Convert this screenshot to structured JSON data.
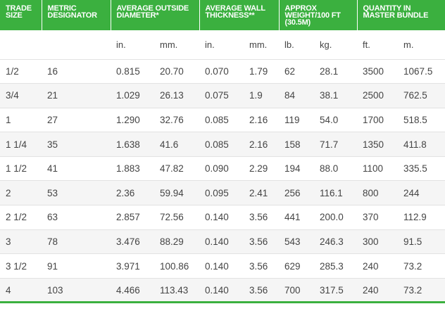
{
  "headers": [
    "TRADE SIZE",
    "METRIC DESIGNATOR",
    "AVERAGE OUTSIDE DIAMETER*",
    "AVERAGE WALL THICKNESS**",
    "APPROX WEIGHT/100 FT (30.5M)",
    "QUANTITY IN MASTER BUNDLE"
  ],
  "units": [
    "",
    "",
    "in.",
    "mm.",
    "in.",
    "mm.",
    "lb.",
    "kg.",
    "ft.",
    "m."
  ],
  "rows": [
    [
      "1/2",
      "16",
      "0.815",
      "20.70",
      "0.070",
      "1.79",
      "62",
      "28.1",
      "3500",
      "1067.5"
    ],
    [
      "3/4",
      "21",
      "1.029",
      "26.13",
      "0.075",
      "1.9",
      "84",
      "38.1",
      "2500",
      "762.5"
    ],
    [
      "1",
      "27",
      "1.290",
      "32.76",
      "0.085",
      "2.16",
      "119",
      "54.0",
      "1700",
      "518.5"
    ],
    [
      "1 1/4",
      "35",
      "1.638",
      "41.6",
      "0.085",
      "2.16",
      "158",
      "71.7",
      "1350",
      "411.8"
    ],
    [
      "1 1/2",
      "41",
      "1.883",
      "47.82",
      "0.090",
      "2.29",
      "194",
      "88.0",
      "1100",
      "335.5"
    ],
    [
      "2",
      "53",
      "2.36",
      "59.94",
      "0.095",
      "2.41",
      "256",
      "116.1",
      "800",
      "244"
    ],
    [
      "2 1/2",
      "63",
      "2.857",
      "72.56",
      "0.140",
      "3.56",
      "441",
      "200.0",
      "370",
      "112.9"
    ],
    [
      "3",
      "78",
      "3.476",
      "88.29",
      "0.140",
      "3.56",
      "543",
      "246.3",
      "300",
      "91.5"
    ],
    [
      "3 1/2",
      "91",
      "3.971",
      "100.86",
      "0.140",
      "3.56",
      "629",
      "285.3",
      "240",
      "73.2"
    ],
    [
      "4",
      "103",
      "4.466",
      "113.43",
      "0.140",
      "3.56",
      "700",
      "317.5",
      "240",
      "73.2"
    ]
  ],
  "colors": {
    "header_bg": "#3bb03f",
    "stripe_bg": "#f5f5f5",
    "text": "#444444"
  }
}
